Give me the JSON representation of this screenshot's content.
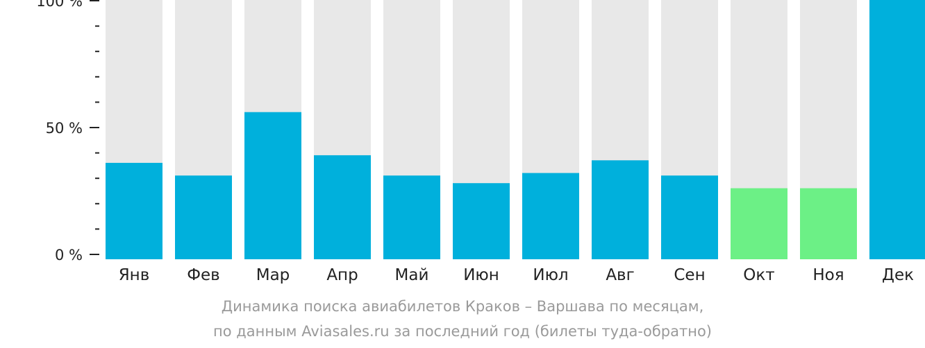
{
  "chart_data": {
    "type": "bar",
    "categories": [
      "Янв",
      "Фев",
      "Мар",
      "Апр",
      "Май",
      "Июн",
      "Июл",
      "Авг",
      "Сен",
      "Окт",
      "Ноя",
      "Дек"
    ],
    "values": [
      38,
      33,
      58,
      41,
      33,
      30,
      34,
      39,
      33,
      28,
      28,
      100
    ],
    "ylim": [
      0,
      100
    ],
    "yticks": [
      "0 %",
      "50 %",
      "100 %"
    ],
    "colors": {
      "bar": "#00b0dc",
      "bar_low": "#6cf086",
      "background": "#e8e8e8",
      "axis": "#222222",
      "caption": "#9a9a9a"
    },
    "low_months": [
      "Окт",
      "Ноя"
    ]
  },
  "caption": {
    "line1": "Динамика поиска авиабилетов Краков – Варшава по месяцам,",
    "line2": "по данным Aviasales.ru за последний год (билеты туда-обратно)"
  }
}
